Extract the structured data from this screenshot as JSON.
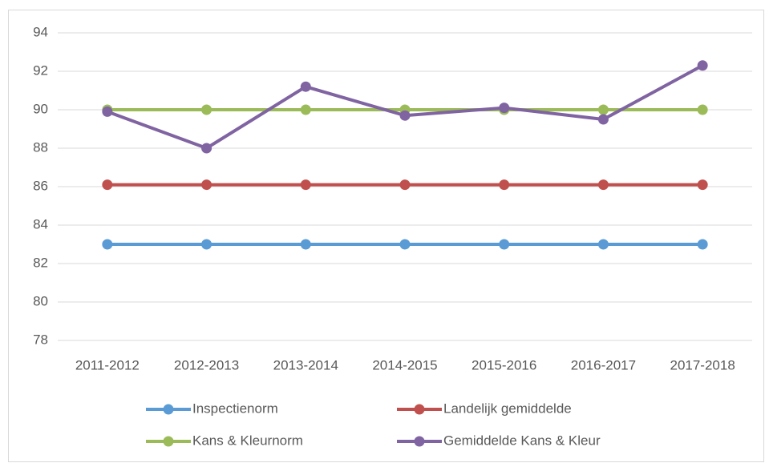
{
  "chart_data": {
    "type": "line",
    "categories": [
      "2011-2012",
      "2012-2013",
      "2013-2014",
      "2014-2015",
      "2015-2016",
      "2016-2017",
      "2017-2018"
    ],
    "series": [
      {
        "name": "Inspectienorm",
        "color": "#5b9bd5",
        "values": [
          83,
          83,
          83,
          83,
          83,
          83,
          83
        ]
      },
      {
        "name": "Landelijk gemiddelde",
        "color": "#c0504d",
        "values": [
          86.1,
          86.1,
          86.1,
          86.1,
          86.1,
          86.1,
          86.1
        ]
      },
      {
        "name": "Kans & Kleurnorm",
        "color": "#9bbb59",
        "values": [
          90,
          90,
          90,
          90,
          90,
          90,
          90
        ]
      },
      {
        "name": "Gemiddelde Kans & Kleur",
        "color": "#8064a2",
        "values": [
          89.9,
          88,
          91.2,
          89.7,
          90.1,
          89.5,
          92.3
        ]
      }
    ],
    "ylim": [
      78,
      94
    ],
    "yticks": [
      78,
      80,
      82,
      84,
      86,
      88,
      90,
      92,
      94
    ],
    "grid": true,
    "legend": "bottom"
  }
}
